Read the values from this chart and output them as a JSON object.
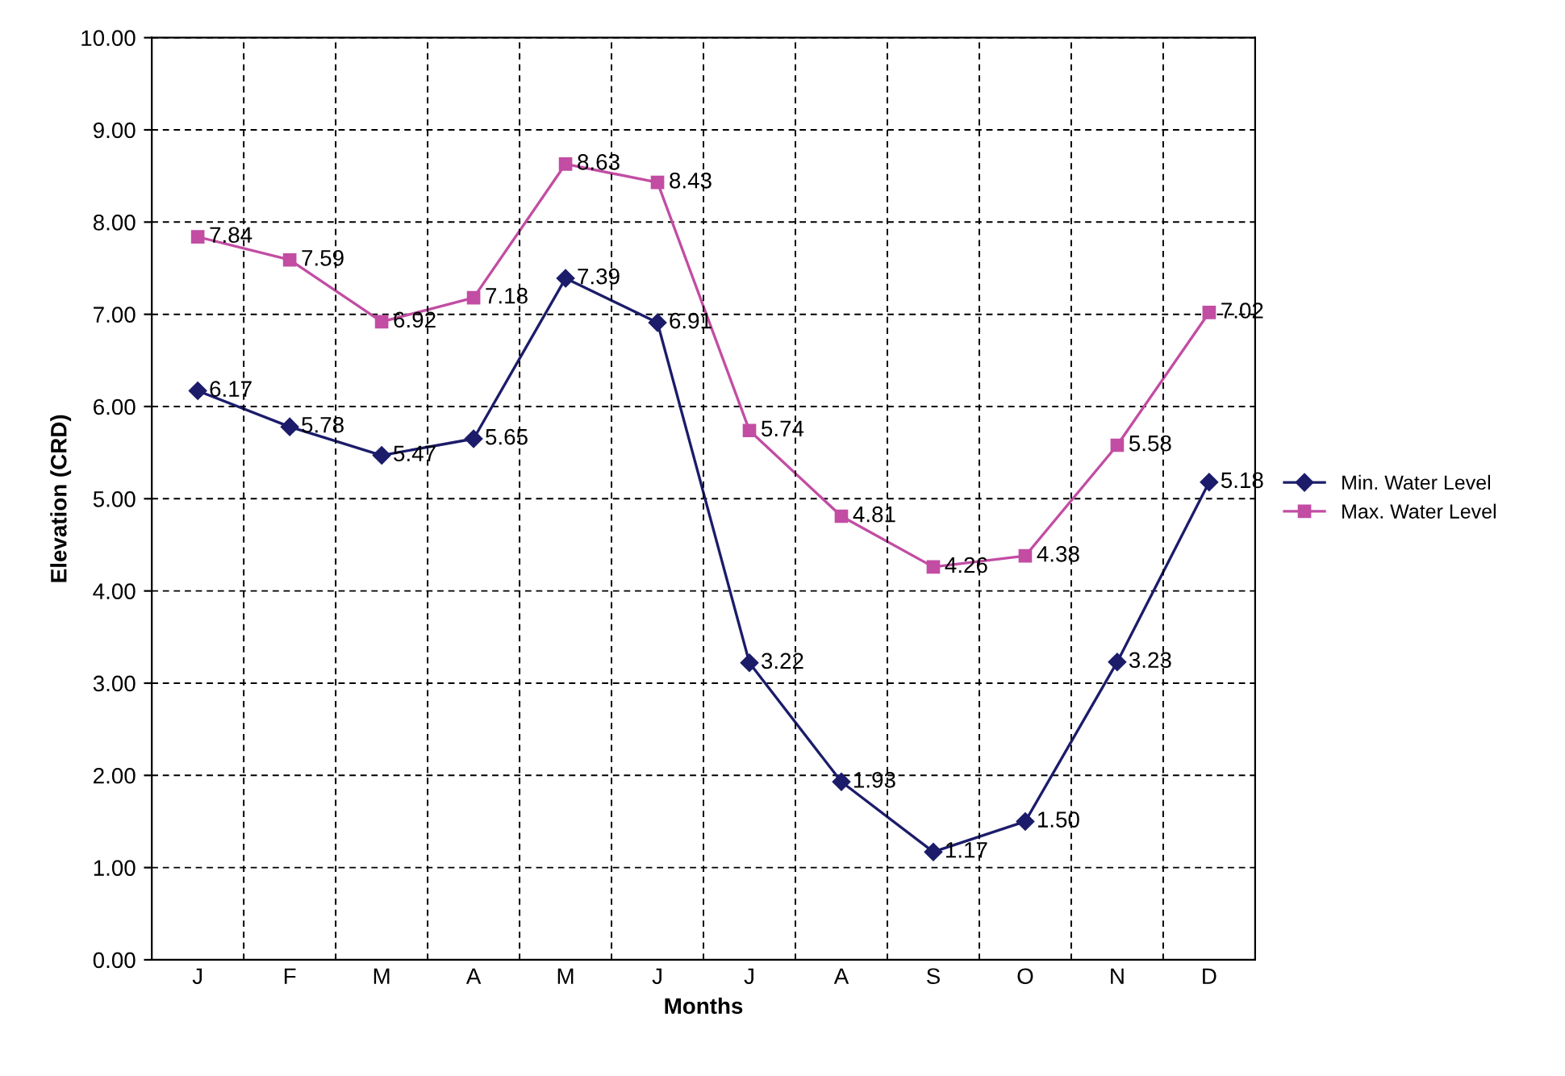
{
  "chart_data": {
    "type": "line",
    "xlabel": "Months",
    "ylabel": "Elevation (CRD)",
    "categories": [
      "J",
      "F",
      "M",
      "A",
      "M",
      "J",
      "J",
      "A",
      "S",
      "O",
      "N",
      "D"
    ],
    "ylim": [
      0,
      10
    ],
    "yticks": [
      {
        "value": 0,
        "label": "0.00"
      },
      {
        "value": 1,
        "label": "1.00"
      },
      {
        "value": 2,
        "label": "2.00"
      },
      {
        "value": 3,
        "label": "3.00"
      },
      {
        "value": 4,
        "label": "4.00"
      },
      {
        "value": 5,
        "label": "5.00"
      },
      {
        "value": 6,
        "label": "6.00"
      },
      {
        "value": 7,
        "label": "7.00"
      },
      {
        "value": 8,
        "label": "8.00"
      },
      {
        "value": 9,
        "label": "9.00"
      },
      {
        "value": 10,
        "label": "10.00"
      }
    ],
    "grid": true,
    "legend": "right",
    "line_style": "solid",
    "series": [
      {
        "name": "Min. Water Level",
        "color": "#1c1c6b",
        "marker": "diamond",
        "values": [
          6.17,
          5.78,
          5.47,
          5.65,
          7.39,
          6.91,
          3.22,
          1.93,
          1.17,
          1.5,
          3.23,
          5.18
        ],
        "value_labels": [
          "6.17",
          "5.78",
          "5.47",
          "5.65",
          "7.39",
          "6.91",
          "3.22",
          "1.93",
          "1.17",
          "1.50",
          "3.23",
          "5.18"
        ]
      },
      {
        "name": "Max. Water Level",
        "color": "#c24da3",
        "marker": "square",
        "values": [
          7.84,
          7.59,
          6.92,
          7.18,
          8.63,
          8.43,
          5.74,
          4.81,
          4.26,
          4.38,
          5.58,
          7.02
        ],
        "value_labels": [
          "7.84",
          "7.59",
          "6.92",
          "7.18",
          "8.63",
          "8.43",
          "5.74",
          "4.81",
          "4.26",
          "4.38",
          "5.58",
          "7.02"
        ]
      }
    ]
  }
}
